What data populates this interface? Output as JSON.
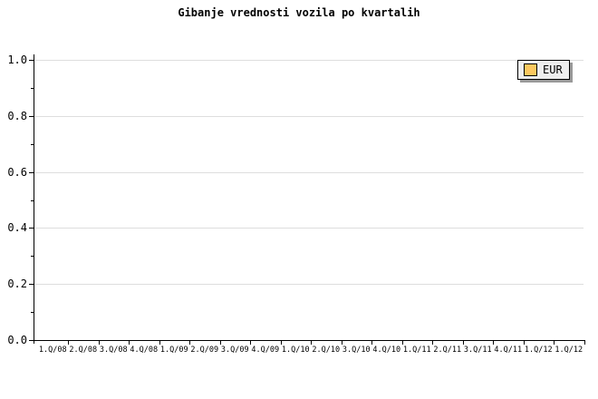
{
  "chart_data": {
    "type": "line",
    "title": "Gibanje vrednosti vozila po kvartalih",
    "categories": [
      "1.Q/08",
      "2.Q/08",
      "3.Q/08",
      "4.Q/08",
      "1.Q/09",
      "2.Q/09",
      "3.Q/09",
      "4.Q/09",
      "1.Q/10",
      "2.Q/10",
      "3.Q/10",
      "4.Q/10",
      "1.Q/11",
      "2.Q/11",
      "3.Q/11",
      "4.Q/11",
      "1.Q/12",
      "1.Q/12"
    ],
    "series": [
      {
        "name": "EUR",
        "values": []
      }
    ],
    "xlabel": "",
    "ylabel": "",
    "ylim": [
      0.0,
      1.0
    ],
    "y_ticks": [
      0.0,
      0.2,
      0.4,
      0.6,
      0.8,
      1.0
    ],
    "y_tick_labels": [
      "0.0",
      "0.2",
      "0.4",
      "0.6",
      "0.8",
      "1.0"
    ],
    "y_minor_tick_step": 0.1,
    "grid": "horizontal-major",
    "legend_position": "top-right"
  },
  "legend": {
    "items": [
      {
        "label": "EUR",
        "swatch_color": "#FCC860"
      }
    ]
  },
  "colors": {
    "background": "#FFFFFF",
    "text": "#000000",
    "axis": "#000000",
    "gridline": "#DEDEDE",
    "legend_background": "#EEEEEE",
    "legend_border": "#000000",
    "legend_shadow": "#999999",
    "series_eur_swatch": "#FCC860"
  }
}
